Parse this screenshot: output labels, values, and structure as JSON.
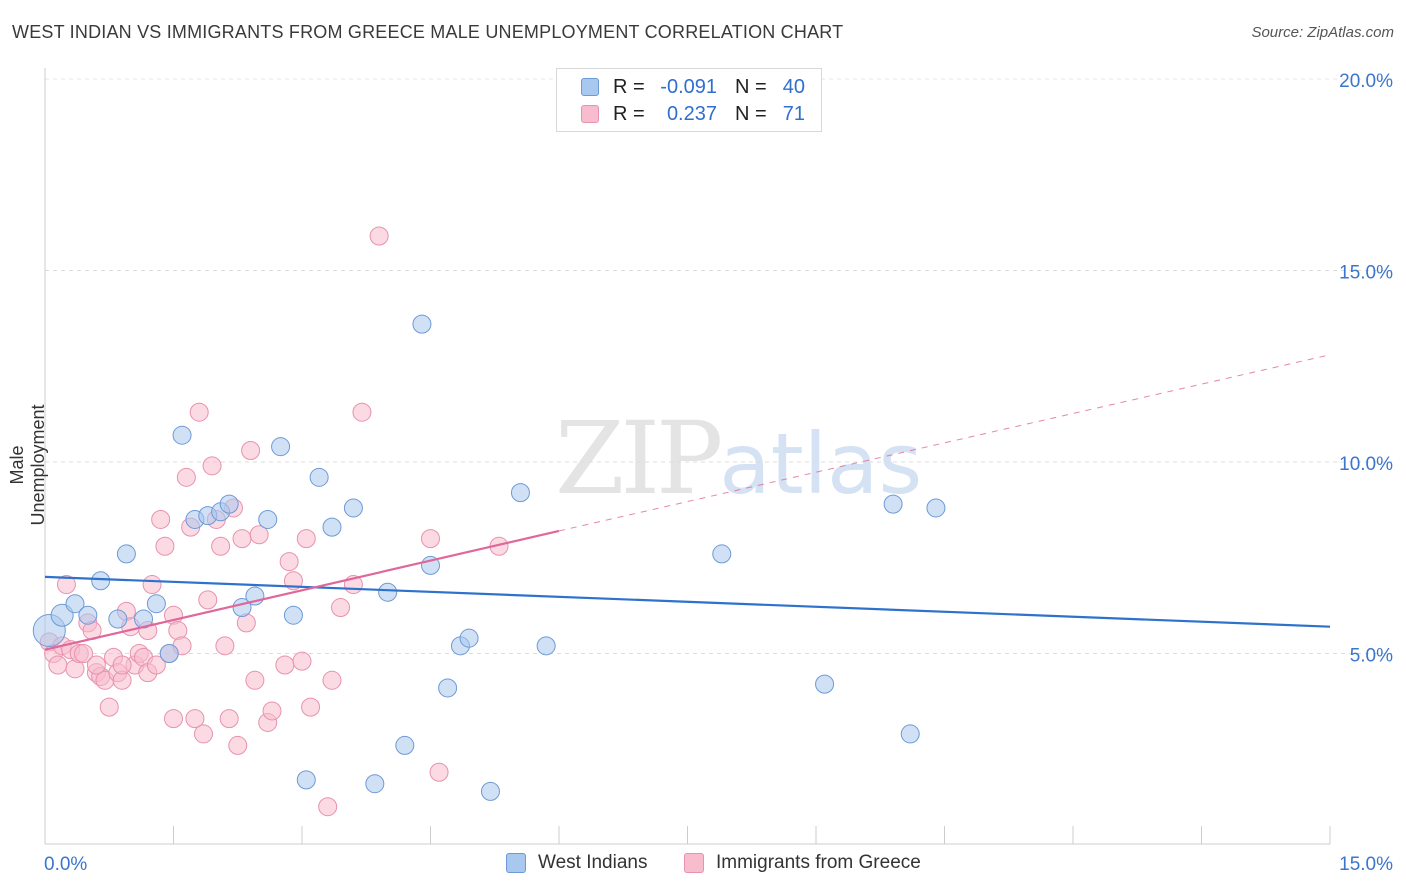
{
  "header": {
    "title": "WEST INDIAN VS IMMIGRANTS FROM GREECE MALE UNEMPLOYMENT CORRELATION CHART",
    "source": "Source: ZipAtlas.com"
  },
  "watermark": {
    "zip": "ZIP",
    "atlas": "atlas"
  },
  "legend": {
    "rows": [
      {
        "r_label": "R =",
        "r_value": "-0.091",
        "n_label": "N =",
        "n_value": "40",
        "color": "#a9c8ef",
        "border": "#6d9ad6"
      },
      {
        "r_label": "R =",
        "r_value": "0.237",
        "n_label": "N =",
        "n_value": "71",
        "color": "#f7bccd",
        "border": "#e892ad"
      }
    ]
  },
  "bottom_legend": {
    "series1": "West Indians",
    "series2": "Immigrants from Greece"
  },
  "chart_data": {
    "type": "scatter",
    "title": "WEST INDIAN VS IMMIGRANTS FROM GREECE MALE UNEMPLOYMENT CORRELATION CHART",
    "xlabel": "",
    "ylabel": "Male Unemployment",
    "xlim": [
      0,
      15
    ],
    "ylim": [
      0,
      20
    ],
    "x_ticks": [
      {
        "value": 0,
        "label": "0.0%"
      },
      {
        "value": 15,
        "label": "15.0%"
      }
    ],
    "y_ticks": [
      {
        "value": 5,
        "label": "5.0%"
      },
      {
        "value": 10,
        "label": "10.0%"
      },
      {
        "value": 15,
        "label": "15.0%"
      },
      {
        "value": 20,
        "label": "20.0%"
      }
    ],
    "grid": "horizontal dashed",
    "series": [
      {
        "name": "West Indians",
        "color": "#a9c8ef",
        "stroke": "#6d9ad6",
        "trend_color": "#2e72cc",
        "trend": {
          "x0": 0,
          "y0": 7.0,
          "x1": 15,
          "y1": 5.7
        },
        "points": [
          [
            0.05,
            5.6,
            16
          ],
          [
            0.2,
            6.0,
            11
          ],
          [
            0.35,
            6.3,
            9
          ],
          [
            0.5,
            6.0,
            9
          ],
          [
            0.65,
            6.9,
            9
          ],
          [
            0.85,
            5.9,
            9
          ],
          [
            0.95,
            7.6,
            9
          ],
          [
            1.15,
            5.9,
            9
          ],
          [
            1.3,
            6.3,
            9
          ],
          [
            1.45,
            5.0,
            9
          ],
          [
            1.6,
            10.7,
            9
          ],
          [
            1.75,
            8.5,
            9
          ],
          [
            1.9,
            8.6,
            9
          ],
          [
            2.05,
            8.7,
            9
          ],
          [
            2.15,
            8.9,
            9
          ],
          [
            2.3,
            6.2,
            9
          ],
          [
            2.45,
            6.5,
            9
          ],
          [
            2.6,
            8.5,
            9
          ],
          [
            2.75,
            10.4,
            9
          ],
          [
            2.9,
            6.0,
            9
          ],
          [
            3.05,
            1.7,
            9
          ],
          [
            3.2,
            9.6,
            9
          ],
          [
            3.35,
            8.3,
            9
          ],
          [
            3.6,
            8.8,
            9
          ],
          [
            3.85,
            1.6,
            9
          ],
          [
            4.0,
            6.6,
            9
          ],
          [
            4.2,
            2.6,
            9
          ],
          [
            4.4,
            13.6,
            9
          ],
          [
            4.5,
            7.3,
            9
          ],
          [
            4.7,
            4.1,
            9
          ],
          [
            4.85,
            5.2,
            9
          ],
          [
            4.95,
            5.4,
            9
          ],
          [
            5.2,
            1.4,
            9
          ],
          [
            5.55,
            9.2,
            9
          ],
          [
            5.85,
            5.2,
            9
          ],
          [
            7.9,
            7.6,
            9
          ],
          [
            9.1,
            4.2,
            9
          ],
          [
            9.9,
            8.9,
            9
          ],
          [
            10.1,
            2.9,
            9
          ],
          [
            10.4,
            8.8,
            9
          ]
        ]
      },
      {
        "name": "Immigrants from Greece",
        "color": "#f7bccd",
        "stroke": "#e892ad",
        "trend_color": "#e0679a",
        "trend": {
          "x0": 0,
          "y0": 5.1,
          "x1": 6.0,
          "y1": 8.2
        },
        "trend_extension": {
          "x0": 6.0,
          "y0": 8.2,
          "x1": 15.0,
          "y1": 12.8
        },
        "points": [
          [
            0.05,
            5.3,
            9
          ],
          [
            0.1,
            5.0,
            9
          ],
          [
            0.15,
            4.7,
            9
          ],
          [
            0.2,
            5.2,
            9
          ],
          [
            0.25,
            6.8,
            9
          ],
          [
            0.3,
            5.1,
            9
          ],
          [
            0.35,
            4.6,
            9
          ],
          [
            0.4,
            5.0,
            9
          ],
          [
            0.45,
            5.0,
            9
          ],
          [
            0.5,
            5.8,
            9
          ],
          [
            0.55,
            5.6,
            9
          ],
          [
            0.6,
            4.5,
            9
          ],
          [
            0.65,
            4.4,
            9
          ],
          [
            0.7,
            4.3,
            9
          ],
          [
            0.75,
            3.6,
            9
          ],
          [
            0.8,
            4.9,
            9
          ],
          [
            0.85,
            4.5,
            9
          ],
          [
            0.9,
            4.3,
            9
          ],
          [
            0.95,
            6.1,
            9
          ],
          [
            1.0,
            5.7,
            9
          ],
          [
            1.05,
            4.7,
            9
          ],
          [
            1.1,
            5.0,
            9
          ],
          [
            1.15,
            4.9,
            9
          ],
          [
            1.2,
            4.5,
            9
          ],
          [
            1.25,
            6.8,
            9
          ],
          [
            1.3,
            4.7,
            9
          ],
          [
            1.35,
            8.5,
            9
          ],
          [
            1.4,
            7.8,
            9
          ],
          [
            1.45,
            5.0,
            9
          ],
          [
            1.5,
            6.0,
            9
          ],
          [
            1.55,
            5.6,
            9
          ],
          [
            1.6,
            5.2,
            9
          ],
          [
            1.65,
            9.6,
            9
          ],
          [
            1.7,
            8.3,
            9
          ],
          [
            1.75,
            3.3,
            9
          ],
          [
            1.8,
            11.3,
            9
          ],
          [
            1.85,
            2.9,
            9
          ],
          [
            1.9,
            6.4,
            9
          ],
          [
            1.95,
            9.9,
            9
          ],
          [
            2.0,
            8.5,
            9
          ],
          [
            2.05,
            7.8,
            9
          ],
          [
            2.1,
            5.2,
            9
          ],
          [
            2.15,
            3.3,
            9
          ],
          [
            2.2,
            8.8,
            9
          ],
          [
            2.25,
            2.6,
            9
          ],
          [
            2.3,
            8.0,
            9
          ],
          [
            2.35,
            5.8,
            9
          ],
          [
            2.4,
            10.3,
            9
          ],
          [
            2.45,
            4.3,
            9
          ],
          [
            2.5,
            8.1,
            9
          ],
          [
            2.6,
            3.2,
            9
          ],
          [
            2.65,
            3.5,
            9
          ],
          [
            2.8,
            4.7,
            9
          ],
          [
            2.85,
            7.4,
            9
          ],
          [
            2.9,
            6.9,
            9
          ],
          [
            3.0,
            4.8,
            9
          ],
          [
            3.05,
            8.0,
            9
          ],
          [
            3.1,
            3.6,
            9
          ],
          [
            3.3,
            1.0,
            9
          ],
          [
            3.35,
            4.3,
            9
          ],
          [
            3.45,
            6.2,
            9
          ],
          [
            3.6,
            6.8,
            9
          ],
          [
            3.7,
            11.3,
            9
          ],
          [
            3.9,
            15.9,
            9
          ],
          [
            4.5,
            8.0,
            9
          ],
          [
            4.6,
            1.9,
            9
          ],
          [
            5.3,
            7.8,
            9
          ],
          [
            1.2,
            5.6,
            9
          ],
          [
            0.9,
            4.7,
            9
          ],
          [
            0.6,
            4.7,
            9
          ],
          [
            1.5,
            3.3,
            9
          ]
        ]
      }
    ]
  }
}
